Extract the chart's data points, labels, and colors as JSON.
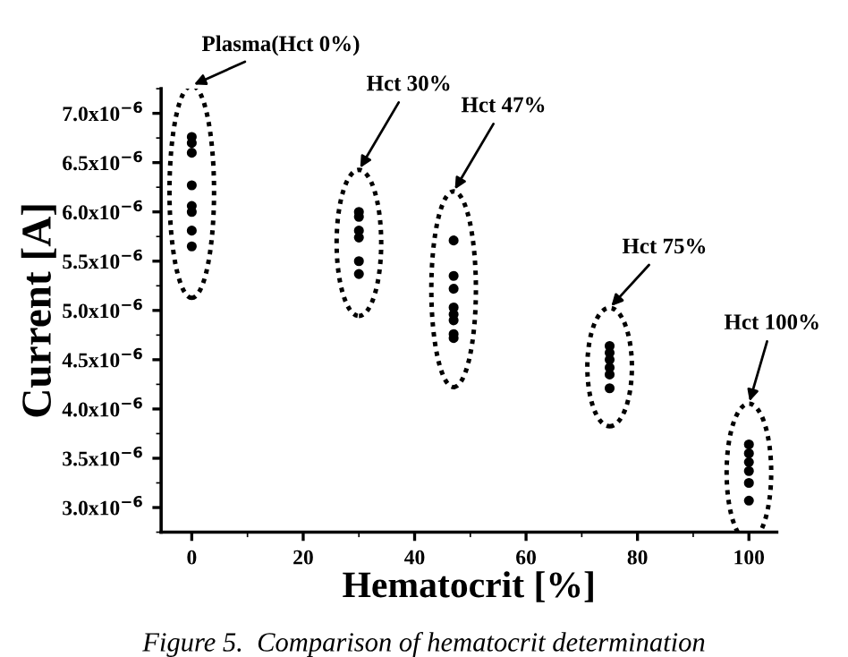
{
  "chart_data": {
    "type": "scatter",
    "xlabel": "Hematocrit [%]",
    "ylabel": "Current [A]",
    "x": [
      0,
      0,
      0,
      0,
      0,
      0,
      0,
      0,
      30,
      30,
      30,
      30,
      30,
      30,
      47,
      47,
      47,
      47,
      47,
      47,
      47,
      47,
      75,
      75,
      75,
      75,
      75,
      75,
      100,
      100,
      100,
      100,
      100,
      100
    ],
    "series": [
      {
        "color": "#000000",
        "values": [
          6.76e-06,
          6.7e-06,
          6.6e-06,
          6.27e-06,
          6.06e-06,
          6e-06,
          5.81e-06,
          5.65e-06,
          6e-06,
          5.95e-06,
          5.81e-06,
          5.74e-06,
          5.5e-06,
          5.37e-06,
          5.71e-06,
          5.35e-06,
          5.22e-06,
          5.03e-06,
          4.96e-06,
          4.9e-06,
          4.76e-06,
          4.72e-06,
          4.64e-06,
          4.57e-06,
          4.5e-06,
          4.42e-06,
          4.35e-06,
          4.21e-06,
          3.64e-06,
          3.55e-06,
          3.46e-06,
          3.37e-06,
          3.25e-06,
          3.07e-06
        ]
      }
    ],
    "marker": "circle",
    "xlim": [
      -5.5,
      105
    ],
    "xticks": [
      0,
      20,
      40,
      60,
      80,
      100
    ],
    "ylim": [
      2.75e-06,
      7.25e-06
    ],
    "yticks": [
      {
        "value": 3e-06,
        "label": "3.0x10$^{−6}$"
      },
      {
        "value": 3.5e-06,
        "label": "3.5x10$^{−6}$"
      },
      {
        "value": 4e-06,
        "label": "4.0x10$^{−6}$"
      },
      {
        "value": 4.5e-06,
        "label": "4.5x10$^{−6}$"
      },
      {
        "value": 5e-06,
        "label": "5.0x10$^{−6}$"
      },
      {
        "value": 5.5e-06,
        "label": "5.5x10$^{−6}$"
      },
      {
        "value": 6e-06,
        "label": "6.0x10$^{−6}$"
      },
      {
        "value": 6.5e-06,
        "label": "6.5x10$^{−6}$"
      },
      {
        "value": 7e-06,
        "label": "7.0x10$^{−6}$"
      }
    ],
    "grid": false,
    "legend": false,
    "annotations": [
      "Plasma(Hct 0%)",
      "Hct 30%",
      "Hct 47%",
      "Hct 75%",
      "Hct 100%",
      "Figure 5.  Comparison of hematocrit determination"
    ]
  }
}
